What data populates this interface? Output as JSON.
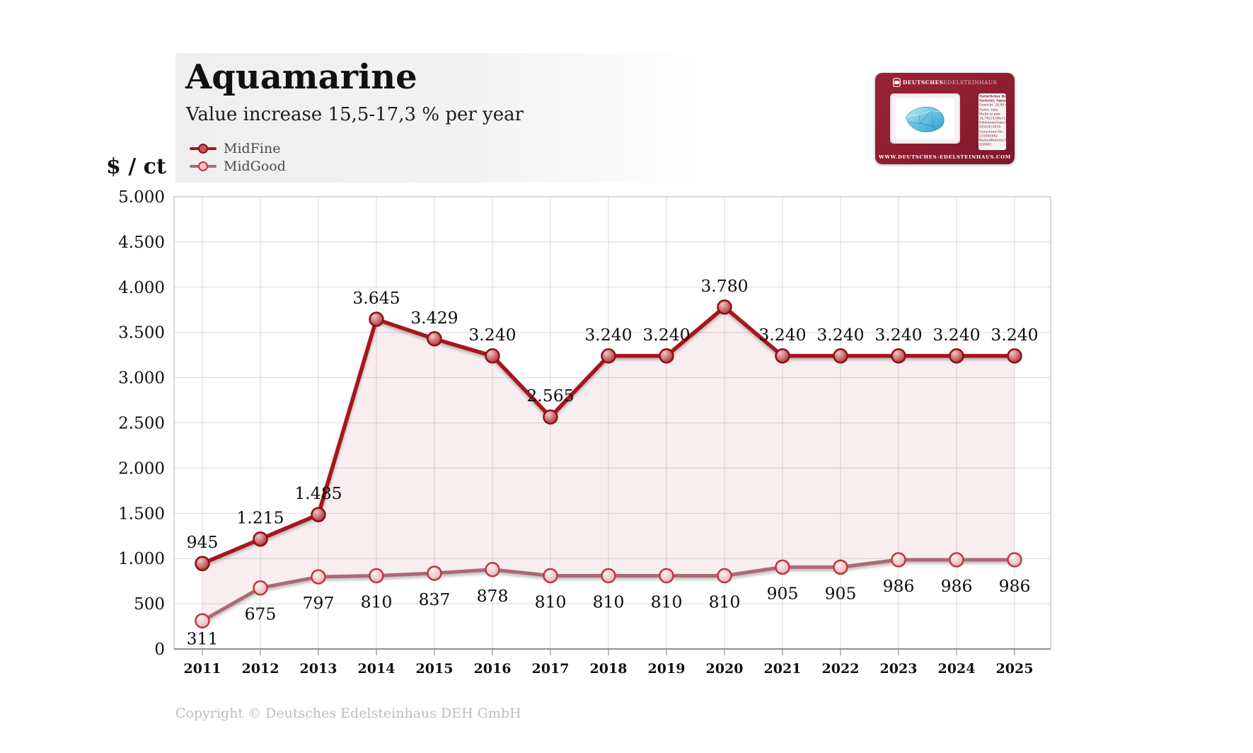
{
  "header": {
    "title": "Aquamarine",
    "subtitle": "Value increase 15,5-17,3 % per year"
  },
  "y_axis_unit": "$ / ct",
  "footer": {
    "copyright": "Copyright © Deutsches Edelsteinhaus DEH GmbH"
  },
  "gem_card": {
    "brand_bold": "DEUTSCHES",
    "brand_light": "EDELSTEINHAUS",
    "website": "WWW.DEUTSCHES-EDELSTEINHAUS.COM",
    "label_lines": [
      "Natürlicher Beryll",
      "Varietät: Aquamarin",
      "Gewicht: 24,80 ct.",
      "Farbe: blau",
      "Maße in mm:",
      "24,78x14,88x12,31",
      "Edelstein/Gem-ID:",
      "DE45431635",
      "Gutachten-Nr.:",
      "225085982",
      "BefundBericht-Nr.:",
      "038062"
    ],
    "card_color": "#8E1D30"
  },
  "chart_data": {
    "type": "line",
    "title": "Aquamarine",
    "subtitle": "Value increase 15,5-17,3 % per year",
    "xlabel": "",
    "ylabel": "$ / ct",
    "ylim": [
      0,
      5000
    ],
    "ytick_step": 500,
    "ytick_labels": [
      "5.000",
      "4.500",
      "4.000",
      "3.500",
      "3.000",
      "2.500",
      "2.000",
      "1.500",
      "1.000",
      "500",
      "0"
    ],
    "grid": true,
    "legend_position": "top-left",
    "band_fill_between_series": true,
    "band_color": "rgba(166,21,29,0.07)",
    "categories": [
      "2011",
      "2012",
      "2013",
      "2014",
      "2015",
      "2016",
      "2017",
      "2018",
      "2019",
      "2020",
      "2021",
      "2022",
      "2023",
      "2024",
      "2025"
    ],
    "series": [
      {
        "name": "MidFine",
        "color": "#A6151D",
        "values": [
          945,
          1215,
          1485,
          3645,
          3429,
          3240,
          2565,
          3240,
          3240,
          3780,
          3240,
          3240,
          3240,
          3240,
          3240
        ],
        "labels": [
          "945",
          "1.215",
          "1.485",
          "3.645",
          "3.429",
          "3.240",
          "2.565",
          "3.240",
          "3.240",
          "3.780",
          "3.240",
          "3.240",
          "3.240",
          "3.240",
          "3.240"
        ],
        "marker": {
          "ring": "#8D1016",
          "fill_light": "#EFC6C6",
          "fill_dark": "#A8262D"
        },
        "legend_fill": "#C05B5B"
      },
      {
        "name": "MidGood",
        "color": "#AA6A76",
        "values": [
          311,
          675,
          797,
          810,
          837,
          878,
          810,
          810,
          810,
          810,
          905,
          905,
          986,
          986,
          986
        ],
        "labels": [
          "311",
          "675",
          "797",
          "810",
          "837",
          "878",
          "810",
          "810",
          "810",
          "810",
          "905",
          "905",
          "986",
          "986",
          "986"
        ],
        "marker": {
          "ring": "#C2363C",
          "fill_light": "#FBF4F4",
          "fill_dark": "#E2AEB5"
        },
        "legend_fill": "#EBC4C9"
      }
    ]
  }
}
